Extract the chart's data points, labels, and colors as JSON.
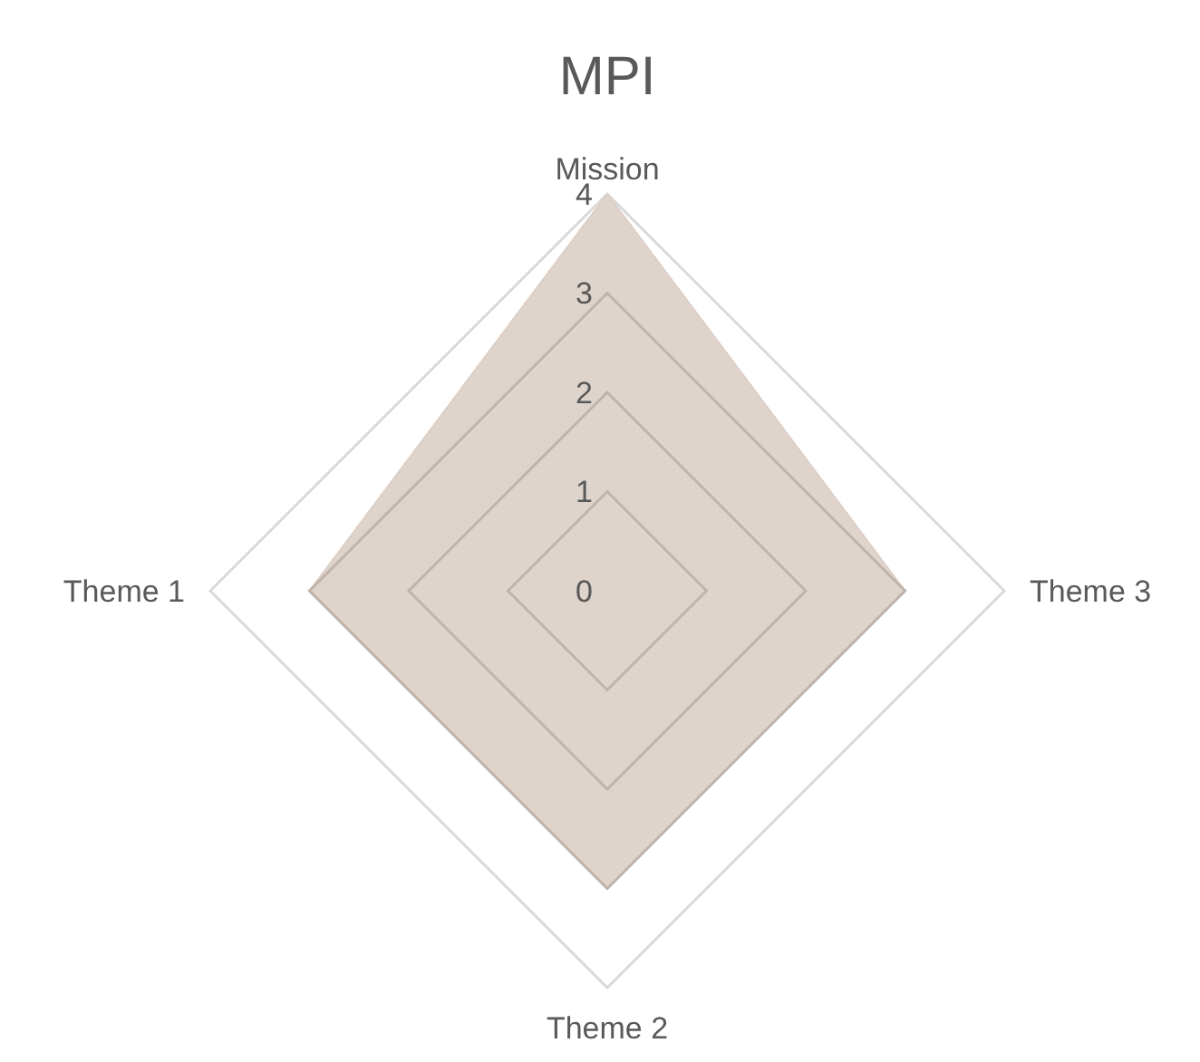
{
  "chart_data": {
    "type": "radar",
    "title": "MPI",
    "categories": [
      "Mission",
      "Theme 3",
      "Theme 2",
      "Theme 1"
    ],
    "series": [
      {
        "color": "#dccfc6",
        "values": [
          4,
          3,
          3,
          3
        ]
      }
    ],
    "ylim": [
      0,
      4
    ],
    "yticks": [
      0,
      1,
      2,
      3,
      4
    ],
    "grid": true
  }
}
